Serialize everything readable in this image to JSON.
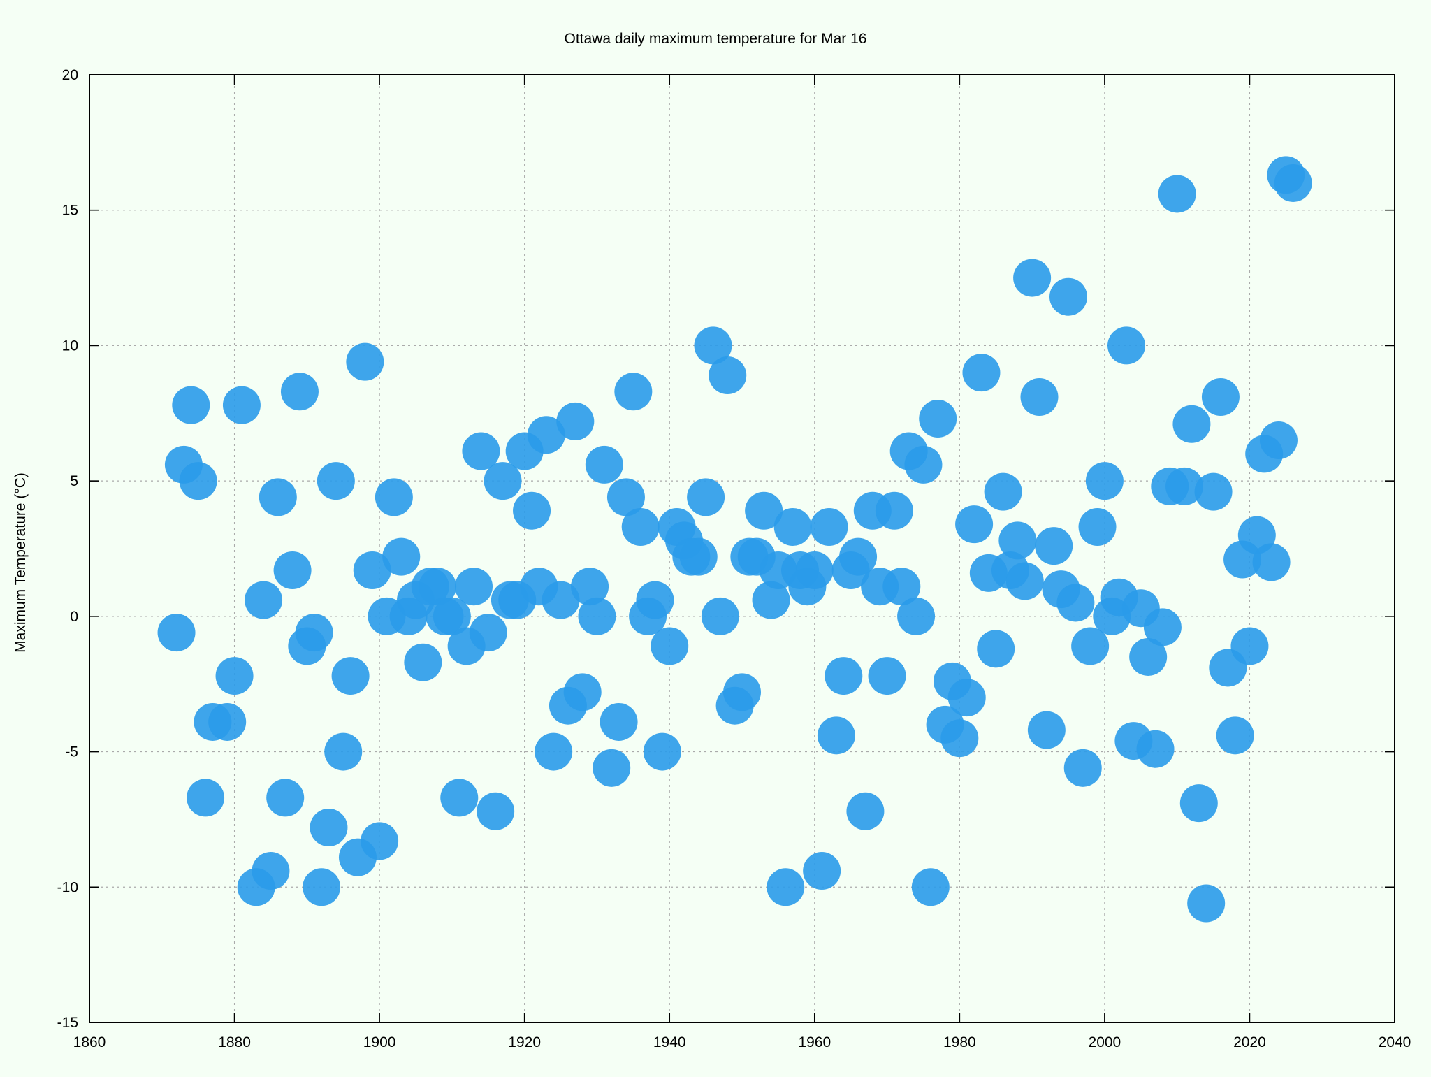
{
  "chart_data": {
    "type": "scatter",
    "title": "Ottawa daily maximum temperature for Mar 16",
    "xlabel": "",
    "ylabel": "Maximum Temperature (°C)",
    "xlim": [
      1860,
      2040
    ],
    "ylim": [
      -15,
      20
    ],
    "xticks": [
      1860,
      1880,
      1900,
      1920,
      1940,
      1960,
      1980,
      2000,
      2020,
      2040
    ],
    "yticks": [
      -15,
      -10,
      -5,
      0,
      5,
      10,
      15,
      20
    ],
    "grid": true,
    "colors": {
      "marker": "#2a9bea",
      "background": "#f5fff5",
      "grid": "#aaaaaa"
    },
    "points": [
      [
        1872,
        -0.6
      ],
      [
        1873,
        5.6
      ],
      [
        1874,
        7.8
      ],
      [
        1875,
        5.0
      ],
      [
        1876,
        -6.7
      ],
      [
        1877,
        -3.9
      ],
      [
        1879,
        -3.9
      ],
      [
        1880,
        -2.2
      ],
      [
        1881,
        7.8
      ],
      [
        1883,
        -10.0
      ],
      [
        1884,
        0.6
      ],
      [
        1885,
        -9.4
      ],
      [
        1886,
        4.4
      ],
      [
        1887,
        -6.7
      ],
      [
        1888,
        1.7
      ],
      [
        1889,
        8.3
      ],
      [
        1890,
        -1.1
      ],
      [
        1891,
        -0.6
      ],
      [
        1892,
        -10.0
      ],
      [
        1893,
        -7.8
      ],
      [
        1894,
        5.0
      ],
      [
        1895,
        -5.0
      ],
      [
        1896,
        -2.2
      ],
      [
        1897,
        -8.9
      ],
      [
        1898,
        9.4
      ],
      [
        1899,
        1.7
      ],
      [
        1900,
        -8.3
      ],
      [
        1901,
        0.0
      ],
      [
        1902,
        4.4
      ],
      [
        1903,
        2.2
      ],
      [
        1904,
        0.0
      ],
      [
        1905,
        0.6
      ],
      [
        1906,
        -1.7
      ],
      [
        1907,
        1.1
      ],
      [
        1908,
        1.1
      ],
      [
        1909,
        0.0
      ],
      [
        1910,
        0.0
      ],
      [
        1911,
        -6.7
      ],
      [
        1912,
        -1.1
      ],
      [
        1913,
        1.1
      ],
      [
        1914,
        6.1
      ],
      [
        1915,
        -0.6
      ],
      [
        1916,
        -7.2
      ],
      [
        1917,
        5.0
      ],
      [
        1918,
        0.6
      ],
      [
        1919,
        0.6
      ],
      [
        1920,
        6.1
      ],
      [
        1921,
        3.9
      ],
      [
        1922,
        1.1
      ],
      [
        1923,
        6.7
      ],
      [
        1924,
        -5.0
      ],
      [
        1925,
        0.6
      ],
      [
        1926,
        -3.3
      ],
      [
        1927,
        7.2
      ],
      [
        1928,
        -2.8
      ],
      [
        1929,
        1.1
      ],
      [
        1930,
        0.0
      ],
      [
        1931,
        5.6
      ],
      [
        1932,
        -5.6
      ],
      [
        1933,
        -3.9
      ],
      [
        1934,
        4.4
      ],
      [
        1935,
        8.3
      ],
      [
        1936,
        3.3
      ],
      [
        1937,
        0.0
      ],
      [
        1938,
        0.6
      ],
      [
        1939,
        -5.0
      ],
      [
        1940,
        -1.1
      ],
      [
        1941,
        3.3
      ],
      [
        1942,
        2.8
      ],
      [
        1943,
        2.2
      ],
      [
        1944,
        2.2
      ],
      [
        1945,
        4.4
      ],
      [
        1946,
        10.0
      ],
      [
        1947,
        0.0
      ],
      [
        1948,
        8.9
      ],
      [
        1949,
        -3.3
      ],
      [
        1950,
        -2.8
      ],
      [
        1951,
        2.2
      ],
      [
        1952,
        2.2
      ],
      [
        1953,
        3.9
      ],
      [
        1954,
        0.6
      ],
      [
        1955,
        1.7
      ],
      [
        1957,
        3.3
      ],
      [
        1956,
        -10.0
      ],
      [
        1958,
        1.7
      ],
      [
        1959,
        1.1
      ],
      [
        1960,
        1.7
      ],
      [
        1961,
        -9.4
      ],
      [
        1962,
        3.3
      ],
      [
        1963,
        -4.4
      ],
      [
        1964,
        -2.2
      ],
      [
        1965,
        1.7
      ],
      [
        1966,
        2.2
      ],
      [
        1967,
        -7.2
      ],
      [
        1968,
        3.9
      ],
      [
        1969,
        1.1
      ],
      [
        1970,
        -2.2
      ],
      [
        1971,
        3.9
      ],
      [
        1972,
        1.1
      ],
      [
        1973,
        6.1
      ],
      [
        1974,
        0.0
      ],
      [
        1975,
        5.6
      ],
      [
        1976,
        -10.0
      ],
      [
        1977,
        7.3
      ],
      [
        1978,
        -4.0
      ],
      [
        1979,
        -2.4
      ],
      [
        1980,
        -4.5
      ],
      [
        1981,
        -3.0
      ],
      [
        1982,
        3.4
      ],
      [
        1983,
        9.0
      ],
      [
        1984,
        1.6
      ],
      [
        1985,
        -1.2
      ],
      [
        1986,
        4.6
      ],
      [
        1987,
        1.7
      ],
      [
        1988,
        2.8
      ],
      [
        1989,
        1.3
      ],
      [
        1990,
        12.5
      ],
      [
        1991,
        8.1
      ],
      [
        1992,
        -4.2
      ],
      [
        1993,
        2.6
      ],
      [
        1994,
        1.0
      ],
      [
        1995,
        11.8
      ],
      [
        1996,
        0.5
      ],
      [
        1997,
        -5.6
      ],
      [
        1998,
        -1.1
      ],
      [
        1999,
        3.3
      ],
      [
        2000,
        5.0
      ],
      [
        2001,
        0.0
      ],
      [
        2002,
        0.7
      ],
      [
        2003,
        10.0
      ],
      [
        2004,
        -4.6
      ],
      [
        2005,
        0.3
      ],
      [
        2006,
        -1.5
      ],
      [
        2007,
        -4.9
      ],
      [
        2008,
        -0.4
      ],
      [
        2009,
        4.8
      ],
      [
        2010,
        15.6
      ],
      [
        2011,
        4.8
      ],
      [
        2012,
        7.1
      ],
      [
        2013,
        -6.9
      ],
      [
        2014,
        -10.6
      ],
      [
        2015,
        4.6
      ],
      [
        2016,
        8.1
      ],
      [
        2017,
        -1.9
      ],
      [
        2018,
        -4.4
      ],
      [
        2019,
        2.1
      ],
      [
        2020,
        -1.1
      ],
      [
        2021,
        3.0
      ],
      [
        2022,
        6.0
      ],
      [
        2023,
        2.0
      ],
      [
        2024,
        6.5
      ],
      [
        2025,
        16.3
      ],
      [
        2026,
        16.0
      ]
    ]
  }
}
